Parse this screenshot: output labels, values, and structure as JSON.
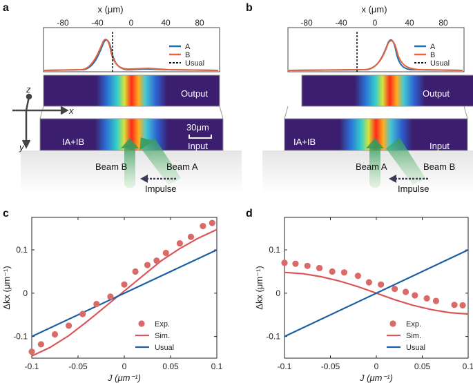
{
  "panel_labels": {
    "a": "a",
    "b": "b",
    "c": "c",
    "d": "d"
  },
  "colors": {
    "A": "#1f6fb0",
    "B": "#e8623a",
    "exp": "#d96a68",
    "sim": "#d9555a",
    "usual": "#1a5fa3",
    "text": "#222222"
  },
  "top": {
    "xlabel": "x (μm)",
    "ticks": [
      "-80",
      "-40",
      "0",
      "40",
      "80"
    ],
    "legend": {
      "A": "A",
      "B": "B",
      "usual": "Usual"
    },
    "output_label": "Output",
    "input_label": "Input",
    "intensity_label": "IA+IB",
    "scale_label": "30μm",
    "impulse_label": "Impulse",
    "axes": {
      "x": "x",
      "y": "y",
      "z": "z"
    },
    "a": {
      "beam_left": "Beam B",
      "beam_right": "Beam A",
      "peak_um": -20,
      "usual_um": -18
    },
    "b": {
      "beam_left": "Beam A",
      "beam_right": "Beam B",
      "peak_um": 18,
      "usual_um": -20
    }
  },
  "chart_data": [
    {
      "panel": "c",
      "type": "scatter",
      "xlabel": "J (μm⁻¹)",
      "ylabel": "Δkx (μm⁻¹)",
      "xlim": [
        -0.1,
        0.1
      ],
      "ylim": [
        -0.15,
        0.175
      ],
      "xticks": [
        "-0.1",
        "-0.05",
        "0",
        "0.05",
        "0.1"
      ],
      "yticks": [
        "-0.1",
        "0",
        "0.1"
      ],
      "legend": [
        "Exp.",
        "Sim.",
        "Usual"
      ],
      "series": [
        {
          "name": "Exp.",
          "type": "scatter",
          "x": [
            -0.1,
            -0.09,
            -0.075,
            -0.06,
            -0.045,
            -0.03,
            -0.015,
            0,
            0.012,
            0.025,
            0.035,
            0.045,
            0.06,
            0.072,
            0.085,
            0.095
          ],
          "y": [
            -0.135,
            -0.118,
            -0.095,
            -0.075,
            -0.048,
            -0.025,
            -0.008,
            0.02,
            0.05,
            0.065,
            0.075,
            0.093,
            0.115,
            0.13,
            0.155,
            0.162
          ]
        },
        {
          "name": "Sim.",
          "type": "line",
          "x": [
            -0.1,
            -0.08,
            -0.06,
            -0.04,
            -0.02,
            0,
            0.02,
            0.04,
            0.06,
            0.08,
            0.1
          ],
          "y": [
            -0.145,
            -0.125,
            -0.098,
            -0.065,
            -0.03,
            0.005,
            0.04,
            0.075,
            0.103,
            0.127,
            0.147
          ]
        },
        {
          "name": "Usual",
          "type": "line",
          "x": [
            -0.1,
            0.1
          ],
          "y": [
            -0.1,
            0.1
          ]
        }
      ]
    },
    {
      "panel": "d",
      "type": "scatter",
      "xlabel": "J (μm⁻¹)",
      "ylabel": "Δkx (μm⁻¹)",
      "xlim": [
        -0.1,
        0.1
      ],
      "ylim": [
        -0.15,
        0.175
      ],
      "xticks": [
        "-0.1",
        "-0.05",
        "0",
        "0.05",
        "0.1"
      ],
      "yticks": [
        "-0.1",
        "0",
        "0.1"
      ],
      "legend": [
        "Exp.",
        "Sim.",
        "Usual"
      ],
      "series": [
        {
          "name": "Exp.",
          "type": "scatter",
          "x": [
            -0.1,
            -0.088,
            -0.075,
            -0.062,
            -0.048,
            -0.035,
            -0.02,
            -0.008,
            0.005,
            0.02,
            0.032,
            0.042,
            0.055,
            0.065,
            0.085,
            0.094
          ],
          "y": [
            0.07,
            0.068,
            0.063,
            0.058,
            0.05,
            0.048,
            0.04,
            0.025,
            0.02,
            0.01,
            0.003,
            -0.005,
            -0.012,
            -0.018,
            -0.027,
            -0.028
          ]
        },
        {
          "name": "Sim.",
          "type": "line",
          "x": [
            -0.1,
            -0.08,
            -0.06,
            -0.04,
            -0.02,
            0,
            0.02,
            0.04,
            0.06,
            0.08,
            0.1
          ],
          "y": [
            0.048,
            0.045,
            0.038,
            0.028,
            0.015,
            0,
            -0.015,
            -0.028,
            -0.038,
            -0.045,
            -0.048
          ]
        },
        {
          "name": "Usual",
          "type": "line",
          "x": [
            -0.1,
            0.1
          ],
          "y": [
            -0.1,
            0.1
          ]
        }
      ]
    }
  ]
}
